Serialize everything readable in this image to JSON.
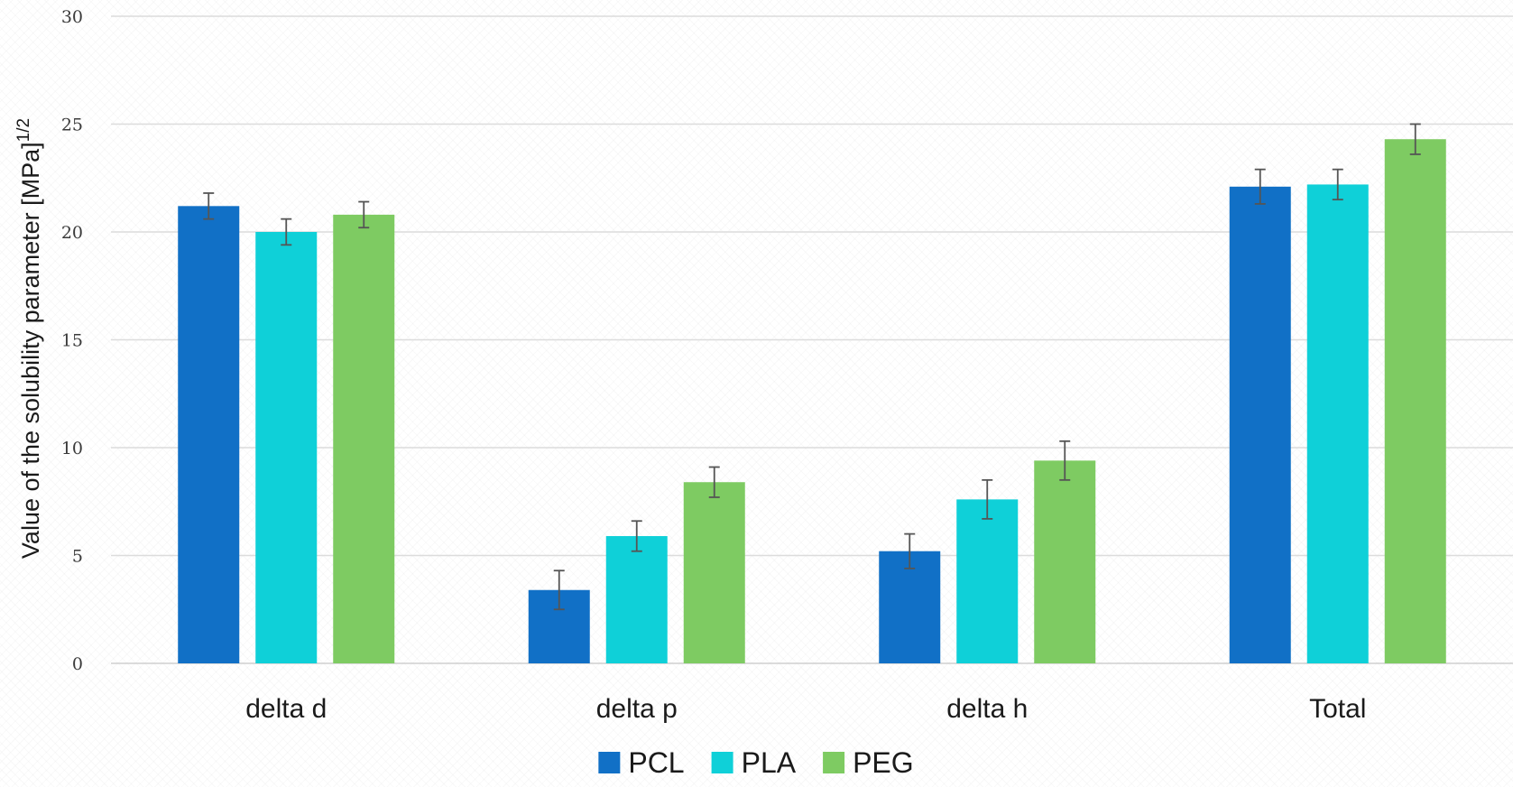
{
  "chart_data": {
    "type": "bar",
    "categories": [
      "delta d",
      "delta p",
      "delta h",
      "Total"
    ],
    "series": [
      {
        "name": "PCL",
        "color": "#1170c6",
        "values": [
          21.2,
          3.4,
          5.2,
          22.1
        ],
        "errors": [
          0.6,
          0.9,
          0.8,
          0.8
        ]
      },
      {
        "name": "PLA",
        "color": "#0fd0d8",
        "values": [
          20.0,
          5.9,
          7.6,
          22.2
        ],
        "errors": [
          0.6,
          0.7,
          0.9,
          0.7
        ]
      },
      {
        "name": "PEG",
        "color": "#7ecb62",
        "values": [
          20.8,
          8.4,
          9.4,
          24.3
        ],
        "errors": [
          0.6,
          0.7,
          0.9,
          0.7
        ]
      }
    ],
    "ylabel": "Value of the solubility parameter [MPa]",
    "ylabel_superscript": "1/2",
    "ylim": [
      0,
      30
    ],
    "yticks": [
      "0",
      "5",
      "10",
      "15",
      "20",
      "25",
      "30"
    ],
    "grid": true,
    "legend_position": "bottom"
  }
}
